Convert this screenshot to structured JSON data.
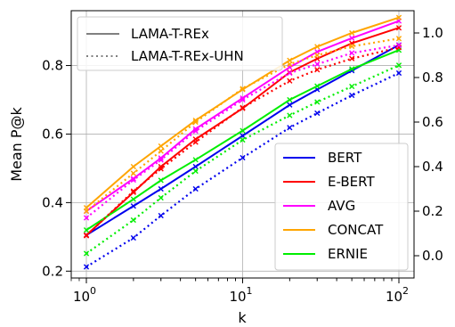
{
  "chart_data": {
    "type": "line",
    "xlabel": "k",
    "ylabel": "Mean P@k",
    "xscale": "log",
    "xlim": [
      0.8,
      125
    ],
    "ylim_left": [
      0.18,
      0.96
    ],
    "ylim_right": [
      -0.1,
      1.1
    ],
    "grid": true,
    "x_ticks": [
      {
        "value": 1,
        "base": "10",
        "exp": "0"
      },
      {
        "value": 10,
        "base": "10",
        "exp": "1"
      },
      {
        "value": 100,
        "base": "10",
        "exp": "2"
      }
    ],
    "y_ticks_left": [
      {
        "value": 0.2,
        "label": "0.2"
      },
      {
        "value": 0.4,
        "label": "0.4"
      },
      {
        "value": 0.6,
        "label": "0.6"
      },
      {
        "value": 0.8,
        "label": "0.8"
      }
    ],
    "y_ticks_right": [
      {
        "value": 0.0,
        "label": "0.0"
      },
      {
        "value": 0.2,
        "label": "0.2"
      },
      {
        "value": 0.4,
        "label": "0.4"
      },
      {
        "value": 0.6,
        "label": "0.6"
      },
      {
        "value": 0.8,
        "label": "0.8"
      },
      {
        "value": 1.0,
        "label": "1.0"
      }
    ],
    "style_legend": {
      "placement": "top-left",
      "entries": [
        {
          "label": "LAMA-T-REx",
          "style": "solid",
          "color": "#808080"
        },
        {
          "label": "LAMA-T-REx-UHN",
          "style": "dotted",
          "color": "#808080"
        }
      ]
    },
    "model_legend": {
      "placement": "lower-right",
      "entries": [
        "BERT",
        "E-BERT",
        "AVG",
        "CONCAT",
        "ERNIE"
      ]
    },
    "x": [
      1,
      2,
      3,
      5,
      10,
      20,
      30,
      50,
      100
    ],
    "series": [
      {
        "name": "BERT",
        "color": "#0000ee",
        "style": "solid",
        "axis": "left",
        "values": [
          0.305,
          0.39,
          0.44,
          0.505,
          0.595,
          0.685,
          0.73,
          0.785,
          0.86
        ]
      },
      {
        "name": "E-BERT",
        "color": "#ff0000",
        "style": "solid",
        "axis": "left",
        "values": [
          0.305,
          0.43,
          0.505,
          0.585,
          0.675,
          0.78,
          0.82,
          0.865,
          0.91
        ]
      },
      {
        "name": "AVG",
        "color": "#ff00ff",
        "style": "solid",
        "axis": "left",
        "values": [
          0.375,
          0.47,
          0.53,
          0.615,
          0.705,
          0.795,
          0.84,
          0.88,
          0.93
        ]
      },
      {
        "name": "CONCAT",
        "color": "#ffa500",
        "style": "solid",
        "axis": "left",
        "values": [
          0.385,
          0.505,
          0.565,
          0.64,
          0.73,
          0.815,
          0.855,
          0.895,
          0.94
        ]
      },
      {
        "name": "ERNIE",
        "color": "#00ee00",
        "style": "solid",
        "axis": "left",
        "values": [
          0.32,
          0.41,
          0.465,
          0.525,
          0.61,
          0.7,
          0.74,
          0.79,
          0.845
        ]
      },
      {
        "name": "BERT",
        "color": "#0000ee",
        "style": "dotted",
        "axis": "right",
        "values": [
          -0.05,
          0.08,
          0.18,
          0.3,
          0.44,
          0.575,
          0.64,
          0.72,
          0.82
        ]
      },
      {
        "name": "E-BERT",
        "color": "#ff0000",
        "style": "dotted",
        "axis": "right",
        "values": [
          0.09,
          0.29,
          0.39,
          0.51,
          0.665,
          0.785,
          0.835,
          0.885,
          0.935
        ]
      },
      {
        "name": "AVG",
        "color": "#ff00ff",
        "style": "dotted",
        "axis": "right",
        "values": [
          0.17,
          0.34,
          0.43,
          0.56,
          0.7,
          0.82,
          0.86,
          0.91,
          0.945
        ]
      },
      {
        "name": "CONCAT",
        "color": "#ffa500",
        "style": "dotted",
        "axis": "right",
        "values": [
          0.2,
          0.37,
          0.47,
          0.6,
          0.75,
          0.86,
          0.9,
          0.94,
          0.975
        ]
      },
      {
        "name": "ERNIE",
        "color": "#00ee00",
        "style": "dotted",
        "axis": "right",
        "values": [
          0.01,
          0.16,
          0.26,
          0.38,
          0.52,
          0.63,
          0.69,
          0.76,
          0.855
        ]
      }
    ]
  }
}
